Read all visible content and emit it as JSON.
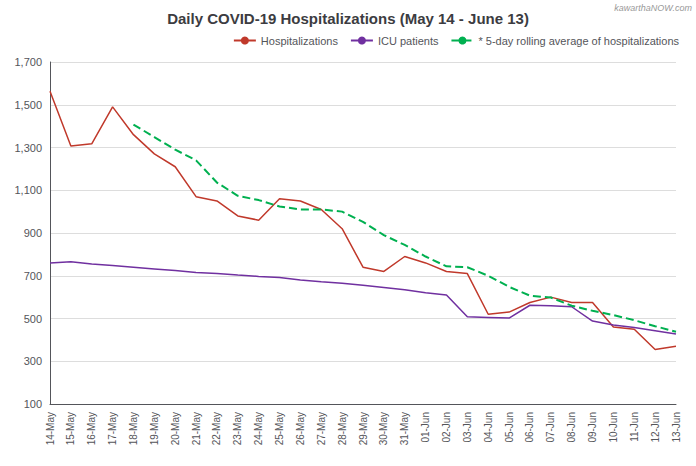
{
  "chart_data": {
    "type": "line",
    "title": "Daily COVID-19 Hospitalizations (May 14 - June 13)",
    "annotations": [
      "kawarthaNOW.com"
    ],
    "categories": [
      "14-May",
      "15-May",
      "16-May",
      "17-May",
      "18-May",
      "19-May",
      "20-May",
      "21-May",
      "22-May",
      "23-May",
      "24-May",
      "25-May",
      "26-May",
      "27-May",
      "28-May",
      "29-May",
      "30-May",
      "31-May",
      "01-Jun",
      "02-Jun",
      "03-Jun",
      "04-Jun",
      "05-Jun",
      "06-Jun",
      "07-Jun",
      "08-Jun",
      "09-Jun",
      "10-Jun",
      "11-Jun",
      "12-Jun",
      "13-Jun"
    ],
    "series": [
      {
        "name": "Hospitalizations",
        "color": "#c0392b",
        "line_style": "solid",
        "values": [
          1563,
          1307,
          1317,
          1490,
          1360,
          1270,
          1210,
          1070,
          1050,
          980,
          960,
          1060,
          1050,
          1010,
          920,
          740,
          720,
          790,
          760,
          720,
          710,
          520,
          530,
          575,
          600,
          575,
          575,
          460,
          450,
          355,
          370
        ]
      },
      {
        "name": "ICU patients",
        "color": "#7030a0",
        "line_style": "solid",
        "values": [
          760,
          765,
          755,
          748,
          740,
          732,
          724,
          715,
          710,
          703,
          697,
          692,
          680,
          672,
          665,
          655,
          645,
          635,
          620,
          610,
          508,
          505,
          502,
          562,
          560,
          555,
          488,
          470,
          458,
          443,
          428
        ]
      },
      {
        "name": "* 5-day rolling average of hospitalizations",
        "color": "#00b050",
        "line_style": "dashed",
        "values": [
          null,
          null,
          null,
          null,
          1407,
          1349,
          1290,
          1240,
          1136,
          1074,
          1054,
          1024,
          1010,
          1010,
          1000,
          952,
          890,
          844,
          790,
          744,
          740,
          700,
          648,
          607,
          598,
          560,
          536,
          516,
          492,
          464,
          438
        ]
      }
    ],
    "ylim": [
      100,
      1700
    ],
    "yticks": [
      100,
      300,
      500,
      700,
      900,
      {
        "value": 1100,
        "label": "1,100"
      },
      {
        "value": 1300,
        "label": "1,300"
      },
      {
        "value": 1500,
        "label": "1,500"
      },
      {
        "value": 1700,
        "label": "1,700"
      }
    ],
    "grid": true,
    "legend": "upper right"
  }
}
